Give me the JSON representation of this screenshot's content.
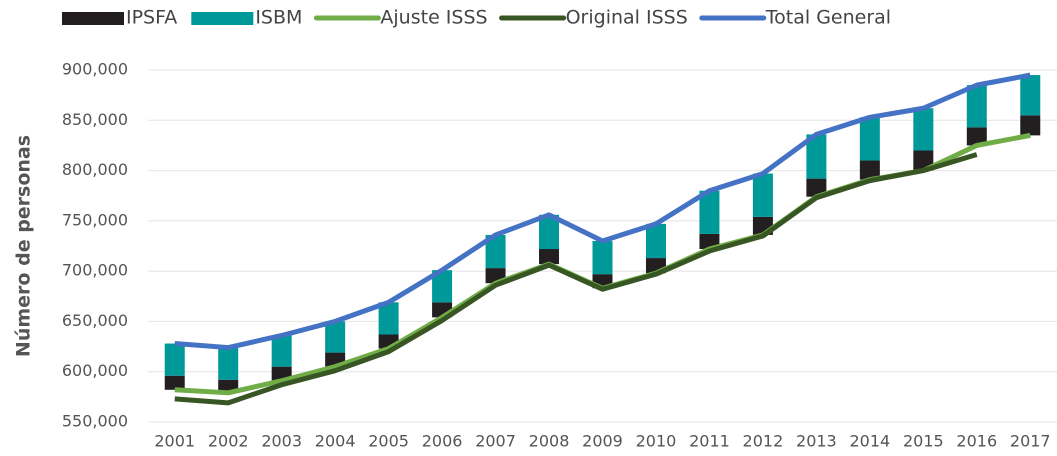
{
  "chart_data": {
    "type": "bar",
    "y_label": "Número de personas",
    "categories": [
      "2001",
      "2002",
      "2003",
      "2004",
      "2005",
      "2006",
      "2007",
      "2008",
      "2009",
      "2010",
      "2011",
      "2012",
      "2013",
      "2014",
      "2015",
      "2016",
      "2017"
    ],
    "series": [
      {
        "name": "IPSFA",
        "type": "bar",
        "color": "#231f20",
        "values": [
          14000,
          13000,
          14000,
          14000,
          14000,
          15000,
          15000,
          15000,
          14000,
          15000,
          15000,
          18000,
          18000,
          19000,
          20000,
          18000,
          20000
        ]
      },
      {
        "name": "ISBM",
        "type": "bar",
        "color": "#00999a",
        "values": [
          32000,
          32000,
          31000,
          31000,
          32000,
          32000,
          33000,
          34000,
          33000,
          34000,
          43000,
          43000,
          44000,
          43000,
          42000,
          42000,
          40000
        ]
      },
      {
        "name": "Ajuste ISSS",
        "type": "line",
        "color": "#70ad47",
        "values": [
          582000,
          579000,
          591000,
          605000,
          623000,
          654000,
          688000,
          707000,
          683000,
          698000,
          722000,
          736000,
          774000,
          791000,
          800000,
          825000,
          835000
        ]
      },
      {
        "name": "Original ISSS",
        "type": "line",
        "color": "#375623",
        "values": [
          573000,
          569000,
          587000,
          601000,
          620000,
          651000,
          686000,
          706000,
          682000,
          697000,
          720000,
          735000,
          773000,
          790000,
          800000,
          816000,
          null
        ]
      },
      {
        "name": "Total General",
        "type": "line",
        "color": "#4472c4",
        "values": [
          628000,
          624000,
          636000,
          650000,
          669000,
          701000,
          736000,
          756000,
          730000,
          747000,
          780000,
          797000,
          836000,
          853000,
          862000,
          885000,
          895000
        ]
      }
    ],
    "ylim": [
      545000,
      905000
    ],
    "yticks": [
      {
        "value": 550000,
        "label": "550,000"
      },
      {
        "value": 600000,
        "label": "600,000"
      },
      {
        "value": 650000,
        "label": "650,000"
      },
      {
        "value": 700000,
        "label": "700,000"
      },
      {
        "value": 750000,
        "label": "750,000"
      },
      {
        "value": 800000,
        "label": "800,000"
      },
      {
        "value": 850000,
        "label": "850,000"
      },
      {
        "value": 900000,
        "label": "900,000"
      }
    ],
    "grid": true,
    "legend": "top"
  }
}
